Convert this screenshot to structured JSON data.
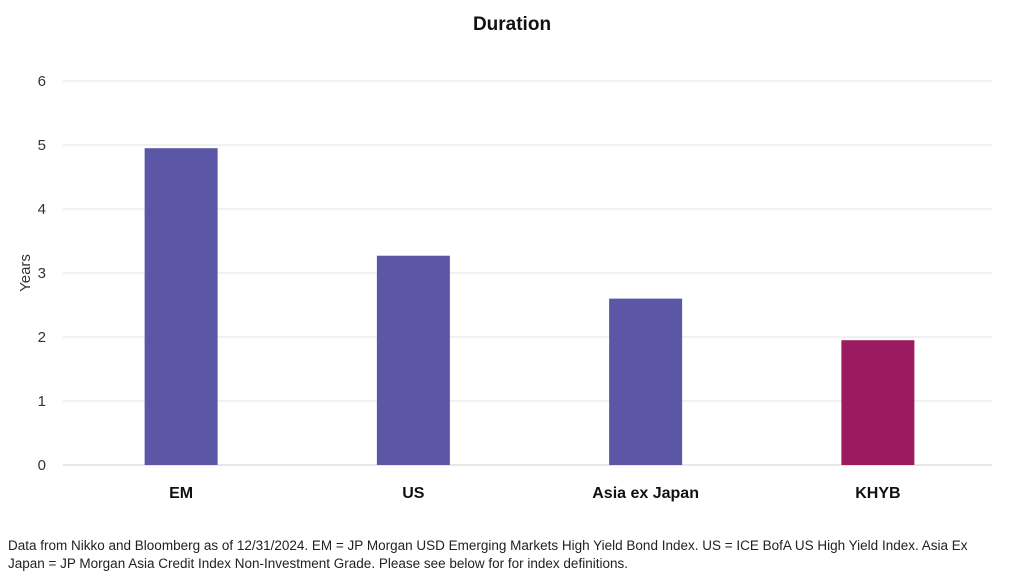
{
  "chart_data": {
    "type": "bar",
    "title": "Duration",
    "xlabel": "",
    "ylabel": "Years",
    "ylim": [
      0,
      6
    ],
    "yticks": [
      0,
      1,
      2,
      3,
      4,
      5,
      6
    ],
    "categories": [
      "EM",
      "US",
      "Asia ex Japan",
      "KHYB"
    ],
    "values": [
      4.95,
      3.27,
      2.6,
      1.95
    ],
    "bar_colors": [
      "#5b57a6",
      "#5b57a6",
      "#5b57a6",
      "#9c1a5f"
    ],
    "grid": true,
    "legend": "none"
  },
  "footnote": "Data from Nikko and Bloomberg as of 12/31/2024. EM = JP Morgan USD Emerging Markets High Yield Bond Index. US = ICE BofA US High Yield Index. Asia Ex Japan = JP Morgan Asia Credit Index Non-Investment Grade. Please see below for for index definitions."
}
